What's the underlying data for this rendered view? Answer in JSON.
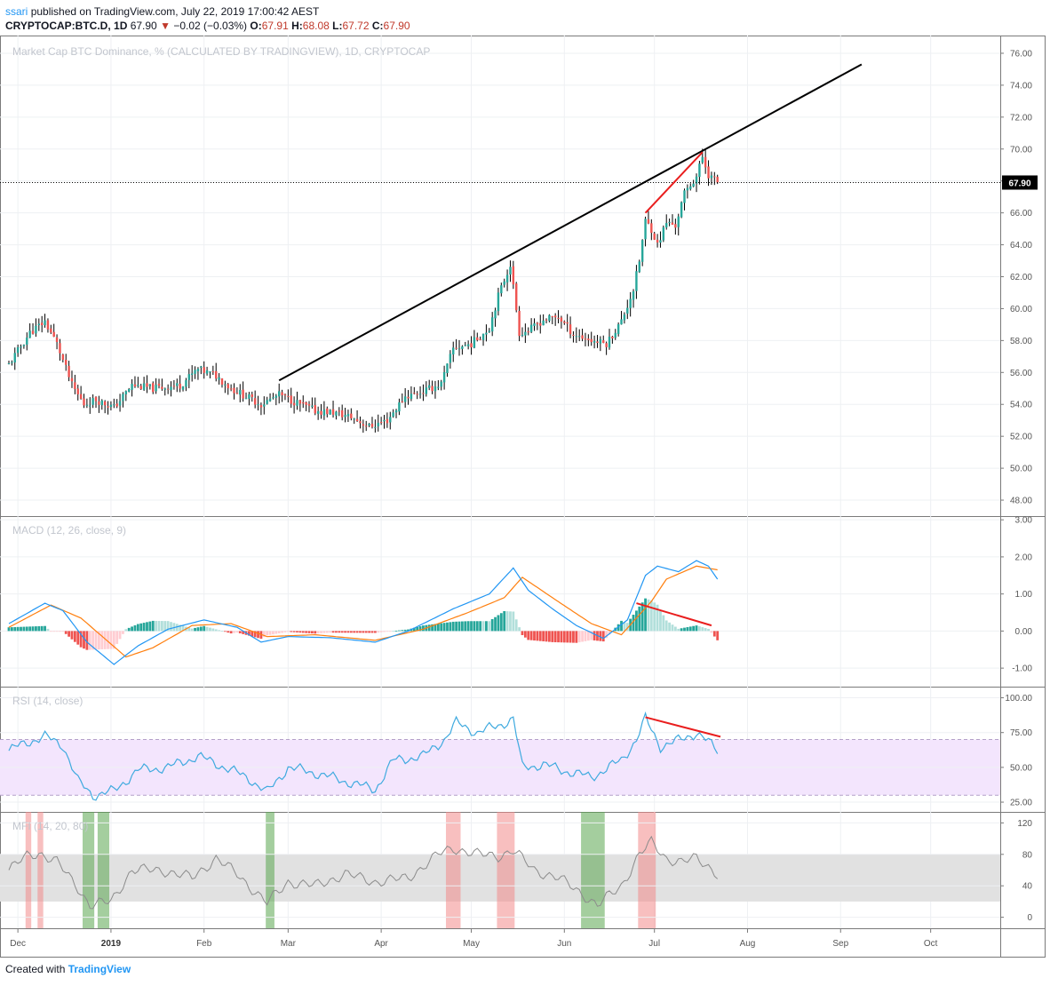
{
  "header": {
    "user": "ssari",
    "published_text": "published on TradingView.com, July 22, 2019 17:00:42 AEST",
    "symbol": "CRYPTOCAP:BTC.D,",
    "interval": "1D",
    "price": "67.90",
    "arrow": "▼",
    "change": "−0.02 (−0.03%)",
    "o_label": "O:",
    "o": "67.91",
    "h_label": "H:",
    "h": "68.08",
    "l_label": "L:",
    "l": "67.72",
    "c_label": "C:",
    "c": "67.90"
  },
  "footer": {
    "created_with": "Created with",
    "brand": "TradingView"
  },
  "colors": {
    "up": "#26a69a",
    "down": "#ef5350",
    "wick": "#000000",
    "macd": "#2196f3",
    "signal": "#ff7f0e",
    "rsi": "#3faadf",
    "rsi_band": "#f3e5fd",
    "mfi_band": "#e1e1e1",
    "drawing": "#e91e1e"
  },
  "chart_data": [
    {
      "type": "candlestick",
      "title": "Market Cap BTC Dominance, % (CALCULATED BY TRADINGVIEW), 1D, CRYPTOCAP",
      "ylim": [
        47,
        77
      ],
      "yticks": [
        "48.00",
        "50.00",
        "52.00",
        "54.00",
        "56.00",
        "58.00",
        "60.00",
        "62.00",
        "64.00",
        "66.00",
        "68.00",
        "70.00",
        "72.00",
        "74.00",
        "76.00"
      ],
      "last_price_label": "67.90",
      "last_price": 67.9,
      "x_start": "2018-11-28",
      "x_end": "2019-07-22",
      "anchors": [
        [
          "2018-11-28",
          56.5
        ],
        [
          "2018-12-05",
          58.5
        ],
        [
          "2018-12-10",
          59.2
        ],
        [
          "2018-12-14",
          57.8
        ],
        [
          "2018-12-19",
          55.2
        ],
        [
          "2018-12-23",
          54.0
        ],
        [
          "2018-12-27",
          54.3
        ],
        [
          "2019-01-02",
          53.8
        ],
        [
          "2019-01-08",
          55.2
        ],
        [
          "2019-01-15",
          55.0
        ],
        [
          "2019-01-24",
          55.2
        ],
        [
          "2019-01-30",
          56.2
        ],
        [
          "2019-02-05",
          55.8
        ],
        [
          "2019-02-10",
          55.0
        ],
        [
          "2019-02-15",
          54.5
        ],
        [
          "2019-02-20",
          54.0
        ],
        [
          "2019-02-26",
          54.6
        ],
        [
          "2019-03-04",
          54.1
        ],
        [
          "2019-03-10",
          53.6
        ],
        [
          "2019-03-16",
          53.5
        ],
        [
          "2019-03-22",
          53.2
        ],
        [
          "2019-03-28",
          52.6
        ],
        [
          "2019-04-03",
          53.0
        ],
        [
          "2019-04-09",
          54.5
        ],
        [
          "2019-04-15",
          54.8
        ],
        [
          "2019-04-21",
          55.3
        ],
        [
          "2019-04-25",
          57.5
        ],
        [
          "2019-05-01",
          57.8
        ],
        [
          "2019-05-07",
          58.8
        ],
        [
          "2019-05-10",
          60.8
        ],
        [
          "2019-05-14",
          62.8
        ],
        [
          "2019-05-17",
          58.5
        ],
        [
          "2019-05-20",
          58.6
        ],
        [
          "2019-05-25",
          59.3
        ],
        [
          "2019-05-30",
          59.5
        ],
        [
          "2019-06-04",
          58.4
        ],
        [
          "2019-06-10",
          58.0
        ],
        [
          "2019-06-15",
          57.8
        ],
        [
          "2019-06-20",
          59.2
        ],
        [
          "2019-06-24",
          61.2
        ],
        [
          "2019-06-26",
          63.0
        ],
        [
          "2019-06-28",
          65.5
        ],
        [
          "2019-06-30",
          65.0
        ],
        [
          "2019-07-02",
          64.0
        ],
        [
          "2019-07-05",
          65.4
        ],
        [
          "2019-07-08",
          65.2
        ],
        [
          "2019-07-11",
          67.2
        ],
        [
          "2019-07-15",
          68.3
        ],
        [
          "2019-07-17",
          69.5
        ],
        [
          "2019-07-19",
          68.4
        ],
        [
          "2019-07-22",
          67.9
        ]
      ],
      "trendline": {
        "from": [
          "2019-02-26",
          55.5
        ],
        "to": [
          "2019-09-08",
          75.3
        ]
      },
      "red_line": {
        "from": [
          "2019-06-28",
          66.0
        ],
        "to": [
          "2019-07-17",
          69.8
        ]
      }
    },
    {
      "type": "line",
      "title": "MACD (12, 26, close, 9)",
      "ylim": [
        -1.5,
        3.1
      ],
      "yticks": [
        "3.00",
        "2.00",
        "1.00",
        "0.00",
        "-1.00"
      ],
      "series": [
        {
          "role": "macd",
          "anchors": [
            [
              "2018-11-28",
              0.2
            ],
            [
              "2018-12-10",
              0.75
            ],
            [
              "2018-12-16",
              0.55
            ],
            [
              "2018-12-24",
              -0.3
            ],
            [
              "2019-01-02",
              -0.9
            ],
            [
              "2019-01-10",
              -0.4
            ],
            [
              "2019-01-20",
              0.05
            ],
            [
              "2019-02-01",
              0.3
            ],
            [
              "2019-02-12",
              0.1
            ],
            [
              "2019-02-20",
              -0.3
            ],
            [
              "2019-03-01",
              -0.15
            ],
            [
              "2019-03-15",
              -0.18
            ],
            [
              "2019-03-30",
              -0.3
            ],
            [
              "2019-04-10",
              0.0
            ],
            [
              "2019-04-25",
              0.6
            ],
            [
              "2019-05-07",
              1.0
            ],
            [
              "2019-05-15",
              1.7
            ],
            [
              "2019-05-20",
              1.1
            ],
            [
              "2019-05-28",
              0.6
            ],
            [
              "2019-06-05",
              0.15
            ],
            [
              "2019-06-14",
              -0.2
            ],
            [
              "2019-06-22",
              0.3
            ],
            [
              "2019-06-28",
              1.5
            ],
            [
              "2019-07-02",
              1.75
            ],
            [
              "2019-07-09",
              1.6
            ],
            [
              "2019-07-15",
              1.9
            ],
            [
              "2019-07-19",
              1.75
            ],
            [
              "2019-07-22",
              1.4
            ]
          ]
        },
        {
          "role": "signal",
          "anchors": [
            [
              "2018-11-28",
              0.1
            ],
            [
              "2018-12-12",
              0.7
            ],
            [
              "2018-12-22",
              0.35
            ],
            [
              "2019-01-06",
              -0.7
            ],
            [
              "2019-01-15",
              -0.45
            ],
            [
              "2019-01-28",
              0.15
            ],
            [
              "2019-02-10",
              0.2
            ],
            [
              "2019-02-22",
              -0.15
            ],
            [
              "2019-03-10",
              -0.1
            ],
            [
              "2019-03-30",
              -0.25
            ],
            [
              "2019-04-15",
              0.05
            ],
            [
              "2019-04-30",
              0.5
            ],
            [
              "2019-05-12",
              0.9
            ],
            [
              "2019-05-18",
              1.45
            ],
            [
              "2019-05-28",
              0.9
            ],
            [
              "2019-06-10",
              0.2
            ],
            [
              "2019-06-20",
              -0.1
            ],
            [
              "2019-06-30",
              0.8
            ],
            [
              "2019-07-05",
              1.4
            ],
            [
              "2019-07-15",
              1.75
            ],
            [
              "2019-07-22",
              1.65
            ]
          ]
        }
      ],
      "divergence_line": {
        "from": [
          "2019-06-25",
          0.75
        ],
        "to": [
          "2019-07-20",
          0.15
        ]
      }
    },
    {
      "type": "line",
      "title": "RSI (14, close)",
      "ylim": [
        18,
        108
      ],
      "yticks": [
        "100.00",
        "75.00",
        "50.00",
        "25.00"
      ],
      "band": [
        30,
        70
      ],
      "series": [
        {
          "role": "rsi",
          "anchors": [
            [
              "2018-11-28",
              62
            ],
            [
              "2018-12-04",
              68
            ],
            [
              "2018-12-10",
              72
            ],
            [
              "2018-12-16",
              66
            ],
            [
              "2018-12-21",
              40
            ],
            [
              "2018-12-26",
              30
            ],
            [
              "2019-01-02",
              33
            ],
            [
              "2019-01-10",
              48
            ],
            [
              "2019-01-20",
              50
            ],
            [
              "2019-01-30",
              58
            ],
            [
              "2019-02-08",
              50
            ],
            [
              "2019-02-16",
              42
            ],
            [
              "2019-02-22",
              32
            ],
            [
              "2019-03-01",
              50
            ],
            [
              "2019-03-10",
              46
            ],
            [
              "2019-03-20",
              40
            ],
            [
              "2019-03-30",
              34
            ],
            [
              "2019-04-05",
              55
            ],
            [
              "2019-04-15",
              58
            ],
            [
              "2019-04-22",
              70
            ],
            [
              "2019-04-26",
              82
            ],
            [
              "2019-05-03",
              75
            ],
            [
              "2019-05-10",
              80
            ],
            [
              "2019-05-15",
              85
            ],
            [
              "2019-05-18",
              50
            ],
            [
              "2019-05-25",
              52
            ],
            [
              "2019-06-02",
              47
            ],
            [
              "2019-06-10",
              43
            ],
            [
              "2019-06-20",
              55
            ],
            [
              "2019-06-25",
              70
            ],
            [
              "2019-06-28",
              85
            ],
            [
              "2019-07-03",
              65
            ],
            [
              "2019-07-10",
              70
            ],
            [
              "2019-07-15",
              75
            ],
            [
              "2019-07-19",
              68
            ],
            [
              "2019-07-22",
              62
            ]
          ]
        }
      ],
      "divergence_line": {
        "from": [
          "2019-06-28",
          86
        ],
        "to": [
          "2019-07-23",
          72
        ]
      }
    },
    {
      "type": "line",
      "title": "MFI (14, 20, 80)",
      "ylim": [
        -14,
        134
      ],
      "yticks": [
        "120",
        "80",
        "40",
        "0"
      ],
      "band": [
        20,
        80
      ],
      "series": [
        {
          "role": "mfi",
          "anchors": [
            [
              "2018-11-28",
              60
            ],
            [
              "2018-12-04",
              78
            ],
            [
              "2018-12-08",
              82
            ],
            [
              "2018-12-14",
              70
            ],
            [
              "2018-12-21",
              38
            ],
            [
              "2018-12-25",
              15
            ],
            [
              "2019-01-01",
              20
            ],
            [
              "2019-01-08",
              60
            ],
            [
              "2019-01-18",
              60
            ],
            [
              "2019-01-28",
              50
            ],
            [
              "2019-02-05",
              75
            ],
            [
              "2019-02-12",
              55
            ],
            [
              "2019-02-22",
              18
            ],
            [
              "2019-03-01",
              45
            ],
            [
              "2019-03-10",
              40
            ],
            [
              "2019-03-20",
              55
            ],
            [
              "2019-03-30",
              45
            ],
            [
              "2019-04-10",
              50
            ],
            [
              "2019-04-20",
              80
            ],
            [
              "2019-04-25",
              88
            ],
            [
              "2019-05-03",
              80
            ],
            [
              "2019-05-10",
              78
            ],
            [
              "2019-05-15",
              85
            ],
            [
              "2019-05-22",
              60
            ],
            [
              "2019-05-30",
              50
            ],
            [
              "2019-06-07",
              30
            ],
            [
              "2019-06-12",
              15
            ],
            [
              "2019-06-20",
              40
            ],
            [
              "2019-06-26",
              80
            ],
            [
              "2019-06-30",
              95
            ],
            [
              "2019-07-05",
              75
            ],
            [
              "2019-07-10",
              70
            ],
            [
              "2019-07-15",
              75
            ],
            [
              "2019-07-19",
              65
            ],
            [
              "2019-07-22",
              55
            ]
          ]
        }
      ],
      "highlights": [
        {
          "from": "2018-12-04",
          "to": "2018-12-05",
          "kind": "overbought"
        },
        {
          "from": "2018-12-08",
          "to": "2018-12-09",
          "kind": "overbought"
        },
        {
          "from": "2018-12-23",
          "to": "2018-12-26",
          "kind": "oversold"
        },
        {
          "from": "2018-12-28",
          "to": "2018-12-31",
          "kind": "oversold"
        },
        {
          "from": "2019-02-22",
          "to": "2019-02-24",
          "kind": "oversold"
        },
        {
          "from": "2019-04-23",
          "to": "2019-04-27",
          "kind": "overbought"
        },
        {
          "from": "2019-05-10",
          "to": "2019-05-15",
          "kind": "overbought"
        },
        {
          "from": "2019-06-07",
          "to": "2019-06-14",
          "kind": "oversold"
        },
        {
          "from": "2019-06-26",
          "to": "2019-07-01",
          "kind": "overbought"
        }
      ]
    }
  ],
  "time_axis": [
    {
      "label": "Dec",
      "date": "2018-12-01"
    },
    {
      "label": "2019",
      "date": "2019-01-01",
      "bold": true
    },
    {
      "label": "Feb",
      "date": "2019-02-01"
    },
    {
      "label": "Mar",
      "date": "2019-03-01"
    },
    {
      "label": "Apr",
      "date": "2019-04-01"
    },
    {
      "label": "May",
      "date": "2019-05-01"
    },
    {
      "label": "Jun",
      "date": "2019-06-01"
    },
    {
      "label": "Jul",
      "date": "2019-07-01"
    },
    {
      "label": "Aug",
      "date": "2019-08-01"
    },
    {
      "label": "Sep",
      "date": "2019-09-01"
    },
    {
      "label": "Oct",
      "date": "2019-10-01"
    }
  ]
}
